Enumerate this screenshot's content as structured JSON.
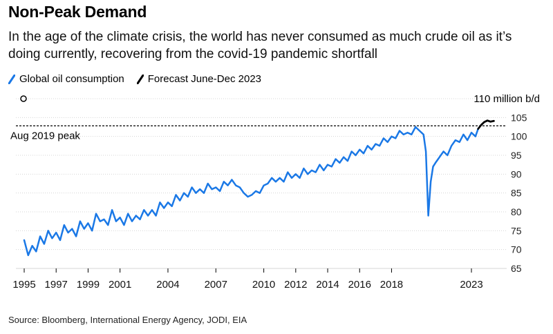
{
  "header": {
    "title": "Non-Peak Demand",
    "subtitle": "In the age of the climate crisis, the world has never consumed as much crude oil as it’s doing currently, recovering from the covid-19 pandemic shortfall"
  },
  "footer": {
    "source": "Source: Bloomberg, International Energy Agency, JODI, EIA"
  },
  "chart_data": {
    "type": "line",
    "title": "Non-Peak Demand",
    "units_label": "110 million b/d",
    "y_top_label": "110 million b/d",
    "ylim": [
      65,
      110
    ],
    "y_ticks": [
      65,
      70,
      75,
      80,
      85,
      90,
      95,
      100,
      105,
      110
    ],
    "y_tick_labels": [
      "65",
      "70",
      "75",
      "80",
      "85",
      "90",
      "95",
      "100",
      "105"
    ],
    "xlim": [
      1995,
      2025.1
    ],
    "x_ticks": [
      1995,
      1997,
      1999,
      2001,
      2004,
      2007,
      2010,
      2012,
      2014,
      2016,
      2018,
      2023
    ],
    "x_tick_labels": [
      "1995",
      "1997",
      "1999",
      "2001",
      "2004",
      "2007",
      "2010",
      "2012",
      "2014",
      "2016",
      "2018",
      "2023"
    ],
    "reference_line": {
      "label": "Aug 2019 peak",
      "value": 102.8
    },
    "series": [
      {
        "name": "Global oil consumption",
        "color": "#1a78e6",
        "x": [
          1995.0,
          1995.25,
          1995.5,
          1995.75,
          1996.0,
          1996.25,
          1996.5,
          1996.75,
          1997.0,
          1997.25,
          1997.5,
          1997.75,
          1998.0,
          1998.25,
          1998.5,
          1998.75,
          1999.0,
          1999.25,
          1999.5,
          1999.75,
          2000.0,
          2000.25,
          2000.5,
          2000.75,
          2001.0,
          2001.25,
          2001.5,
          2001.75,
          2002.0,
          2002.25,
          2002.5,
          2002.75,
          2003.0,
          2003.25,
          2003.5,
          2003.75,
          2004.0,
          2004.25,
          2004.5,
          2004.75,
          2005.0,
          2005.25,
          2005.5,
          2005.75,
          2006.0,
          2006.25,
          2006.5,
          2006.75,
          2007.0,
          2007.25,
          2007.5,
          2007.75,
          2008.0,
          2008.25,
          2008.5,
          2008.75,
          2009.0,
          2009.25,
          2009.5,
          2009.75,
          2010.0,
          2010.25,
          2010.5,
          2010.75,
          2011.0,
          2011.25,
          2011.5,
          2011.75,
          2012.0,
          2012.25,
          2012.5,
          2012.75,
          2013.0,
          2013.25,
          2013.5,
          2013.75,
          2014.0,
          2014.25,
          2014.5,
          2014.75,
          2015.0,
          2015.25,
          2015.5,
          2015.75,
          2016.0,
          2016.25,
          2016.5,
          2016.75,
          2017.0,
          2017.25,
          2017.5,
          2017.75,
          2018.0,
          2018.25,
          2018.5,
          2018.75,
          2019.0,
          2019.25,
          2019.5,
          2019.75,
          2020.0,
          2020.15,
          2020.3,
          2020.45,
          2020.6,
          2020.75,
          2021.0,
          2021.25,
          2021.5,
          2021.75,
          2022.0,
          2022.25,
          2022.5,
          2022.75,
          2023.0,
          2023.25,
          2023.42
        ],
        "values": [
          72.5,
          68.5,
          71.0,
          69.5,
          73.5,
          71.5,
          75.0,
          73.0,
          74.5,
          72.5,
          76.5,
          74.5,
          75.5,
          73.5,
          77.5,
          75.5,
          77.0,
          75.0,
          79.5,
          77.5,
          78.0,
          76.5,
          80.5,
          77.5,
          78.5,
          76.5,
          79.5,
          77.5,
          79.0,
          78.0,
          80.5,
          79.0,
          80.5,
          79.0,
          82.5,
          81.0,
          82.5,
          81.5,
          84.5,
          83.0,
          85.0,
          84.0,
          86.5,
          85.0,
          86.0,
          85.0,
          87.5,
          86.0,
          86.5,
          85.5,
          88.0,
          87.0,
          88.5,
          87.0,
          86.5,
          85.0,
          84.0,
          84.5,
          85.5,
          85.0,
          87.0,
          87.5,
          89.0,
          88.0,
          89.0,
          88.0,
          90.5,
          89.0,
          90.0,
          89.0,
          91.5,
          90.0,
          91.0,
          90.5,
          92.5,
          91.0,
          92.5,
          92.0,
          94.0,
          93.0,
          94.5,
          93.5,
          96.0,
          95.0,
          96.5,
          95.5,
          97.5,
          96.5,
          98.0,
          97.5,
          99.5,
          98.5,
          100.0,
          99.5,
          101.5,
          100.5,
          101.0,
          100.5,
          102.5,
          101.5,
          100.5,
          96.0,
          79.0,
          88.0,
          92.0,
          93.0,
          94.5,
          96.0,
          95.0,
          97.5,
          99.0,
          98.5,
          100.5,
          99.0,
          101.0,
          100.0,
          102.0
        ]
      },
      {
        "name": "Forecast June-Dec 2023",
        "color": "#000000",
        "x": [
          2023.42,
          2023.6,
          2023.8,
          2024.0,
          2024.2,
          2024.4
        ],
        "values": [
          102.0,
          103.0,
          103.8,
          104.2,
          103.9,
          104.1
        ]
      }
    ]
  }
}
